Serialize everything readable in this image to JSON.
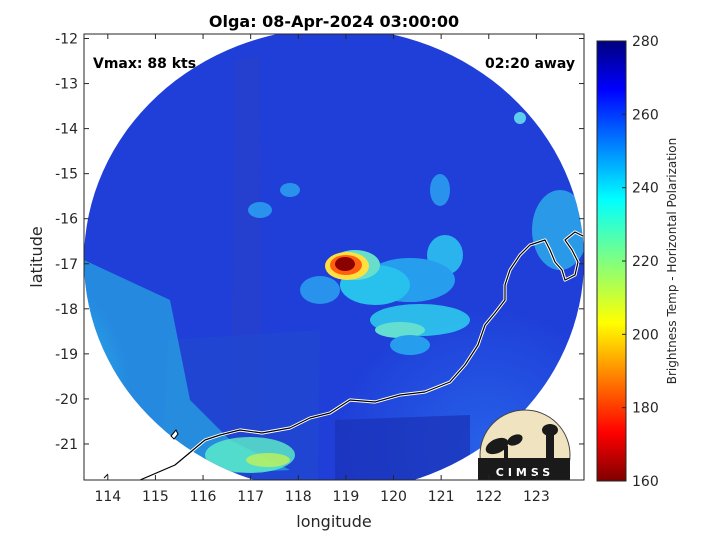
{
  "title": "Olga: 08-Apr-2024 03:00:00",
  "annotations": {
    "vmax": "Vmax: 88 kts",
    "away": "02:20 away"
  },
  "axes": {
    "xlabel": "longitude",
    "ylabel": "latitude",
    "xlim": [
      113.5,
      124
    ],
    "ylim": [
      -21.8,
      -11.9
    ],
    "xticks": [
      "114",
      "115",
      "116",
      "117",
      "118",
      "119",
      "120",
      "121",
      "122",
      "123"
    ],
    "yticks": [
      "-12",
      "-13",
      "-14",
      "-15",
      "-16",
      "-17",
      "-18",
      "-19",
      "-20",
      "-21"
    ]
  },
  "colorbar": {
    "label": "Brightness Temp - Horizontal Polarization",
    "range": [
      160,
      280
    ],
    "ticks": [
      "160",
      "180",
      "200",
      "220",
      "240",
      "260",
      "280"
    ]
  },
  "logo": {
    "text": "CIMSS"
  },
  "colors": {
    "cold_core": "#8b0000",
    "background_field": "#1f3fd8",
    "coast": "#ffffff"
  }
}
